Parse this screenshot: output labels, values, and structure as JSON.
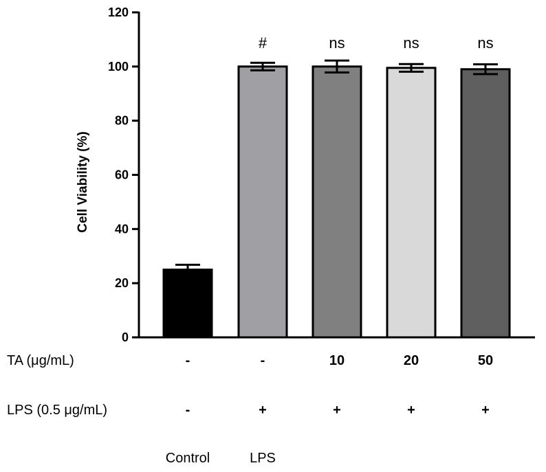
{
  "chart_data": {
    "type": "bar",
    "ylabel": "Cell Viability (%)",
    "ylim": [
      0,
      120
    ],
    "yticks": [
      0,
      20,
      40,
      60,
      80,
      100,
      120
    ],
    "bars": [
      {
        "value": 25,
        "error": 1.8,
        "color": "#000000",
        "annotation": "",
        "ta": "-",
        "lps": "-",
        "group_label": "Control"
      },
      {
        "value": 100,
        "error": 1.4,
        "color": "#a0a0a4",
        "annotation": "#",
        "ta": "-",
        "lps": "+",
        "group_label": "LPS"
      },
      {
        "value": 100,
        "error": 2.2,
        "color": "#808080",
        "annotation": "ns",
        "ta": "10",
        "lps": "+",
        "group_label": ""
      },
      {
        "value": 99.5,
        "error": 1.4,
        "color": "#d9d9d9",
        "annotation": "ns",
        "ta": "20",
        "lps": "+",
        "group_label": ""
      },
      {
        "value": 99,
        "error": 1.8,
        "color": "#5f5f5f",
        "annotation": "ns",
        "ta": "50",
        "lps": "+",
        "group_label": ""
      }
    ],
    "rows": [
      {
        "label": "TA (μg/mL)",
        "key": "ta"
      },
      {
        "label": "LPS (0.5 μg/mL)",
        "key": "lps"
      }
    ]
  }
}
